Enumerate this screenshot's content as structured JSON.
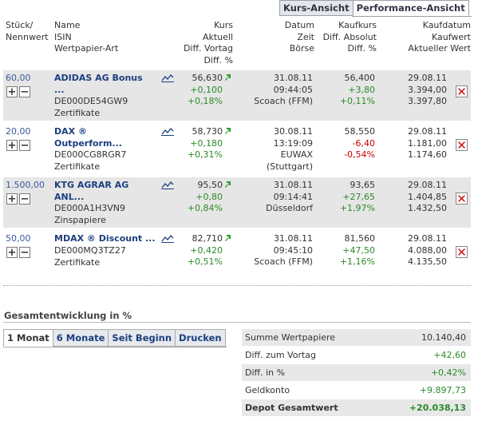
{
  "view_tabs": {
    "kurs": "Kurs-Ansicht",
    "performance": "Performance-Ansicht"
  },
  "headers": {
    "col1": [
      "Stück/",
      "Nennwert"
    ],
    "col2": [
      "Name",
      "ISIN",
      "Wertpapier-Art"
    ],
    "col3": [
      "Kurs",
      "Aktuell",
      "Diff. Vortag",
      "Diff. %"
    ],
    "col4": [
      "Datum",
      "Zeit",
      "Börse"
    ],
    "col5": [
      "Kaufkurs",
      "Diff. Absolut",
      "Diff. %"
    ],
    "col6": [
      "Kaufdatum",
      "Kaufwert",
      "Aktueller Wert"
    ]
  },
  "rows": [
    {
      "qty": "60,00",
      "name": "ADIDAS AG Bonus",
      "name2": "...",
      "isin": "DE000DE54GW9",
      "type": "Zertifikate",
      "kurs": "56,630",
      "diff": "+0,100",
      "diffpct": "+0,18%",
      "datum": "31.08.11",
      "zeit": "09:44:05",
      "boerse": "Scoach (FFM)",
      "boerse2": "",
      "kaufkurs": "56,400",
      "kaufdiff": "+3,80",
      "kaufdiffpct": "+0,11%",
      "kaufdiff_color": "green",
      "kaufdatum": "29.08.11",
      "kaufwert": "3.394,00",
      "aktwert": "3.397,80",
      "shade": true
    },
    {
      "qty": "20,00",
      "name": "DAX ®",
      "name2": "Outperform...",
      "isin": "DE000CG8RGR7",
      "type": "Zertifikate",
      "kurs": "58,730",
      "diff": "+0,180",
      "diffpct": "+0,31%",
      "datum": "30.08.11",
      "zeit": "13:19:09",
      "boerse": "EUWAX",
      "boerse2": "(Stuttgart)",
      "kaufkurs": "58,550",
      "kaufdiff": "-6,40",
      "kaufdiffpct": "-0,54%",
      "kaufdiff_color": "red",
      "kaufdatum": "29.08.11",
      "kaufwert": "1.181,00",
      "aktwert": "1.174,60",
      "shade": false
    },
    {
      "qty": "1.500,00",
      "name": "KTG AGRAR AG",
      "name2": "ANL...",
      "isin": "DE000A1H3VN9",
      "type": "Zinspapiere",
      "kurs": "95,50",
      "diff": "+0,80",
      "diffpct": "+0,84%",
      "datum": "31.08.11",
      "zeit": "09:14:41",
      "boerse": "Düsseldorf",
      "boerse2": "",
      "kaufkurs": "93,65",
      "kaufdiff": "+27,65",
      "kaufdiffpct": "+1,97%",
      "kaufdiff_color": "green",
      "kaufdatum": "29.08.11",
      "kaufwert": "1.404,85",
      "aktwert": "1.432,50",
      "shade": true
    },
    {
      "qty": "50,00",
      "name": "MDAX ® Discount ...",
      "name2": "",
      "isin": "DE000MQ3TZ27",
      "type": "Zertifikate",
      "kurs": "82,710",
      "diff": "+0,420",
      "diffpct": "+0,51%",
      "datum": "31.08.11",
      "zeit": "09:45:10",
      "boerse": "Scoach (FFM)",
      "boerse2": "",
      "kaufkurs": "81,560",
      "kaufdiff": "+47,50",
      "kaufdiffpct": "+1,16%",
      "kaufdiff_color": "green",
      "kaufdatum": "29.08.11",
      "kaufwert": "4.088,00",
      "aktwert": "4.135,50",
      "shade": false
    }
  ],
  "gesamt_title": "Gesamtentwicklung in %",
  "period_tabs": [
    "1 Monat",
    "6 Monate",
    "Seit Beginn",
    "Drucken"
  ],
  "summary": [
    {
      "label": "Summe Wertpapiere",
      "value": "10.140,40",
      "color": "normal"
    },
    {
      "label": "Diff. zum Vortag",
      "value": "+42,60",
      "color": "green"
    },
    {
      "label": "Diff. in %",
      "value": "+0,42%",
      "color": "green"
    },
    {
      "label": "Geldkonto",
      "value": "+9.897,73",
      "color": "green"
    },
    {
      "label": "Depot Gesamtwert",
      "value": "+20.038,13",
      "color": "green"
    }
  ],
  "colors": {
    "green": "#2a8a2a",
    "red": "#cc0000",
    "link": "#1c3f7f",
    "shade": "#e6e6e6"
  },
  "icons": {
    "chart": "chart-line-icon",
    "up": "arrow-up-green-icon",
    "delete": "delete-x-icon",
    "plus": "plus-icon",
    "minus": "minus-icon"
  }
}
